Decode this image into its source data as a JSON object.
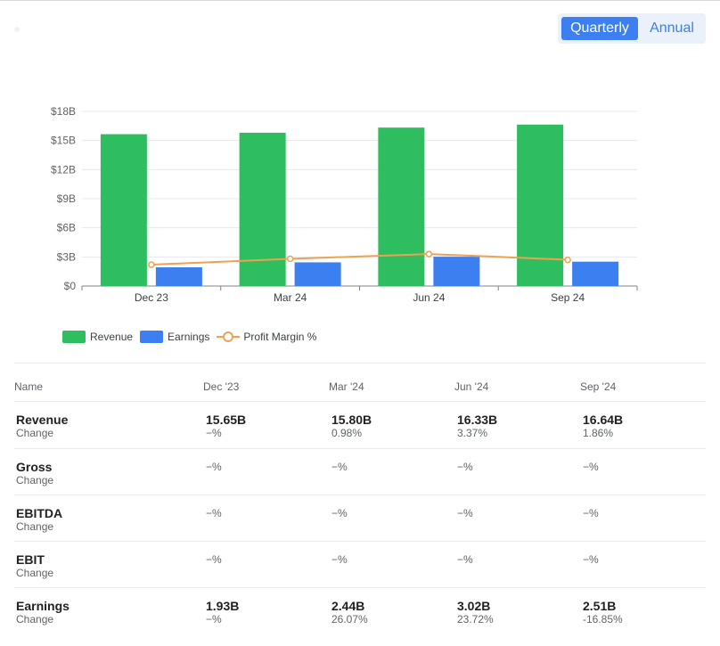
{
  "toggle": {
    "quarterly": "Quarterly",
    "annual": "Annual",
    "active": "quarterly"
  },
  "chart_data": {
    "type": "bar",
    "categories": [
      "Dec 23",
      "Mar 24",
      "Jun 24",
      "Sep 24"
    ],
    "y_ticks": [
      "$0",
      "$3B",
      "$6B",
      "$9B",
      "$12B",
      "$15B",
      "$18B"
    ],
    "ylim": [
      0,
      18
    ],
    "yunit": "B",
    "grid": true,
    "legend_position": "bottom-left",
    "series": [
      {
        "name": "Revenue",
        "kind": "bar",
        "color": "#2ebd5f",
        "values": [
          15.65,
          15.8,
          16.33,
          16.64
        ]
      },
      {
        "name": "Earnings",
        "kind": "bar",
        "color": "#3c7ff0",
        "values": [
          1.93,
          2.44,
          3.02,
          2.51
        ]
      },
      {
        "name": "Profit Margin %",
        "kind": "line",
        "color": "#f0a050",
        "values": [
          2.2,
          2.8,
          3.3,
          2.7
        ]
      }
    ]
  },
  "legend": {
    "revenue": "Revenue",
    "earnings": "Earnings",
    "margin": "Profit Margin %"
  },
  "table": {
    "headers": {
      "name": "Name",
      "cols": [
        "Dec '23",
        "Mar '24",
        "Jun '24",
        "Sep '24"
      ]
    },
    "change_label": "Change",
    "rows": [
      {
        "label": "Revenue",
        "values": [
          "15.65B",
          "15.80B",
          "16.33B",
          "16.64B"
        ],
        "changes": [
          "−%",
          "0.98%",
          "3.37%",
          "1.86%"
        ]
      },
      {
        "label": "Gross",
        "values": [
          "",
          "",
          "",
          ""
        ],
        "changes": [
          "−%",
          "−%",
          "−%",
          "−%"
        ]
      },
      {
        "label": "EBITDA",
        "values": [
          "",
          "",
          "",
          ""
        ],
        "changes": [
          "−%",
          "−%",
          "−%",
          "−%"
        ]
      },
      {
        "label": "EBIT",
        "values": [
          "",
          "",
          "",
          ""
        ],
        "changes": [
          "−%",
          "−%",
          "−%",
          "−%"
        ]
      },
      {
        "label": "Earnings",
        "values": [
          "1.93B",
          "2.44B",
          "3.02B",
          "2.51B"
        ],
        "changes": [
          "−%",
          "26.07%",
          "23.72%",
          "-16.85%"
        ]
      }
    ]
  }
}
